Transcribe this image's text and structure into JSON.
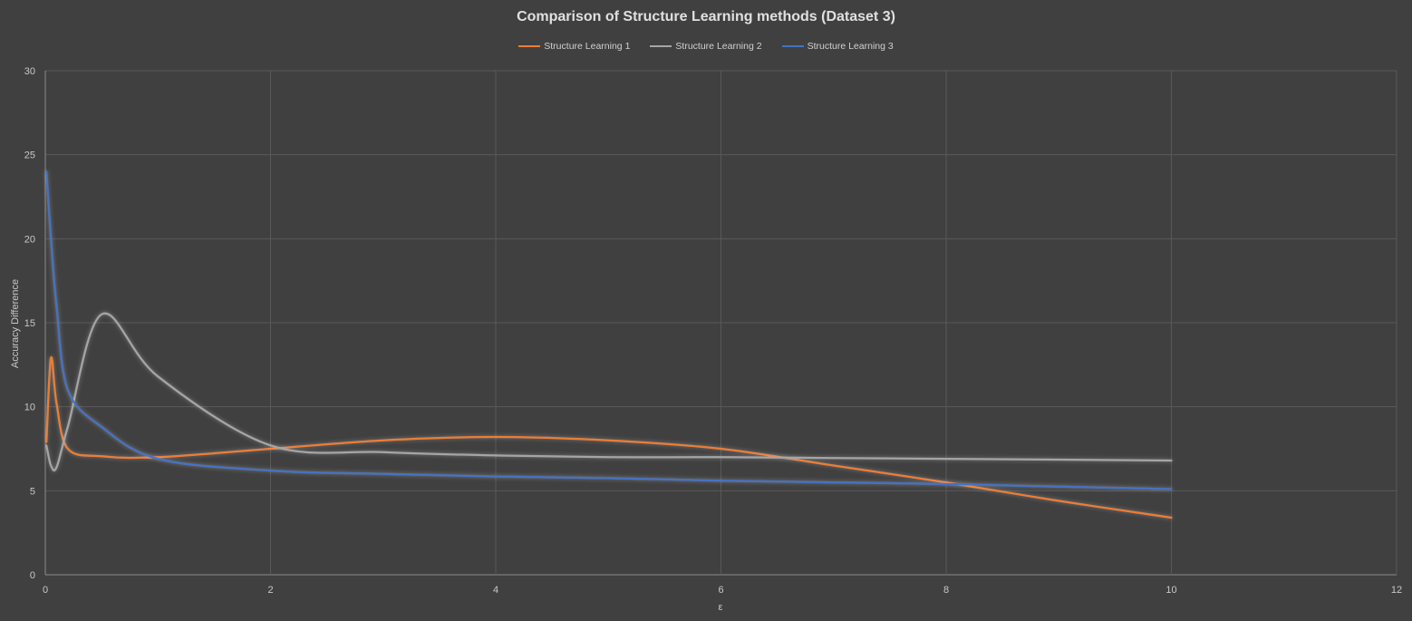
{
  "chart_data": {
    "type": "line",
    "title": "Comparison of Structure Learning methods (Dataset 3)",
    "xlabel": "ε",
    "ylabel": "Accuracy Difference",
    "xlim": [
      0,
      12
    ],
    "ylim": [
      0,
      30
    ],
    "x_ticks": [
      "0",
      "2",
      "4",
      "6",
      "8",
      "10",
      "12"
    ],
    "y_ticks": [
      "0",
      "5",
      "10",
      "15",
      "20",
      "25",
      "30"
    ],
    "grid": true,
    "legend_position": "top",
    "series": [
      {
        "name": "Structure Learning 1",
        "color": "#ed7d31",
        "x": [
          0.01,
          0.05,
          0.1,
          0.2,
          0.5,
          1,
          2,
          3,
          4,
          5,
          6,
          7,
          8,
          9,
          10
        ],
        "y": [
          7.9,
          12.9,
          10.2,
          7.5,
          7.05,
          7.0,
          7.5,
          8.0,
          8.2,
          8.0,
          7.5,
          6.5,
          5.5,
          4.4,
          3.4
        ]
      },
      {
        "name": "Structure Learning 2",
        "color": "#a5a5a5",
        "x": [
          0.01,
          0.05,
          0.1,
          0.2,
          0.5,
          1,
          2,
          3,
          4,
          5,
          6,
          7,
          8,
          9,
          10
        ],
        "y": [
          7.7,
          6.5,
          6.4,
          8.8,
          15.5,
          11.8,
          7.7,
          7.3,
          7.1,
          7.0,
          7.0,
          6.95,
          6.9,
          6.85,
          6.8
        ]
      },
      {
        "name": "Structure Learning 3",
        "color": "#4472c4",
        "x": [
          0.01,
          0.05,
          0.1,
          0.2,
          0.5,
          1,
          2,
          3,
          4,
          5,
          6,
          7,
          8,
          9,
          10
        ],
        "y": [
          24.0,
          20.0,
          16.0,
          11.0,
          8.8,
          6.9,
          6.2,
          6.0,
          5.85,
          5.75,
          5.6,
          5.5,
          5.4,
          5.25,
          5.1
        ]
      }
    ]
  }
}
